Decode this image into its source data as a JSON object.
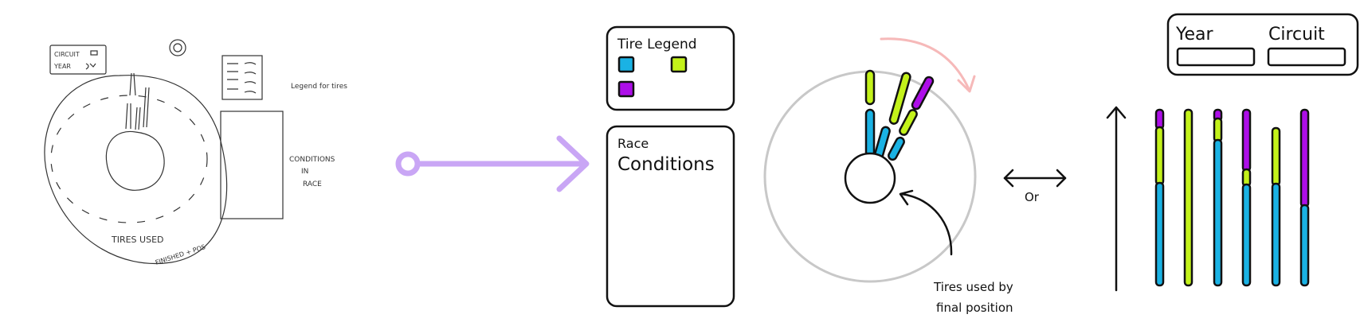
{
  "sketch": {
    "dropdown_circuit": "CIRCUIT",
    "dropdown_year": "YEAR",
    "legend_note": "Legend for tires",
    "conditions_note": [
      "CONDITIONS",
      "IN",
      "RACE"
    ],
    "tires_used": "TIRES USED",
    "finished_note": "FINISHED + POS"
  },
  "legend": {
    "title": "Tire Legend"
  },
  "race_panel": {
    "title_small": "Race",
    "title_large": "Conditions"
  },
  "radial": {
    "annotation": [
      "Tires used by",
      "final position"
    ]
  },
  "or_label": "Or",
  "filters": {
    "year_label": "Year",
    "circuit_label": "Circuit",
    "year_value": "",
    "circuit_value": ""
  },
  "colors": {
    "blue": "#1ab2e4",
    "green": "#c3f21a",
    "purple": "#ad0ee8",
    "arrow": "#c9a6f5",
    "rotate_arrow": "#f6b9b9",
    "ring": "#c8c8c8",
    "ink": "#111111"
  }
}
